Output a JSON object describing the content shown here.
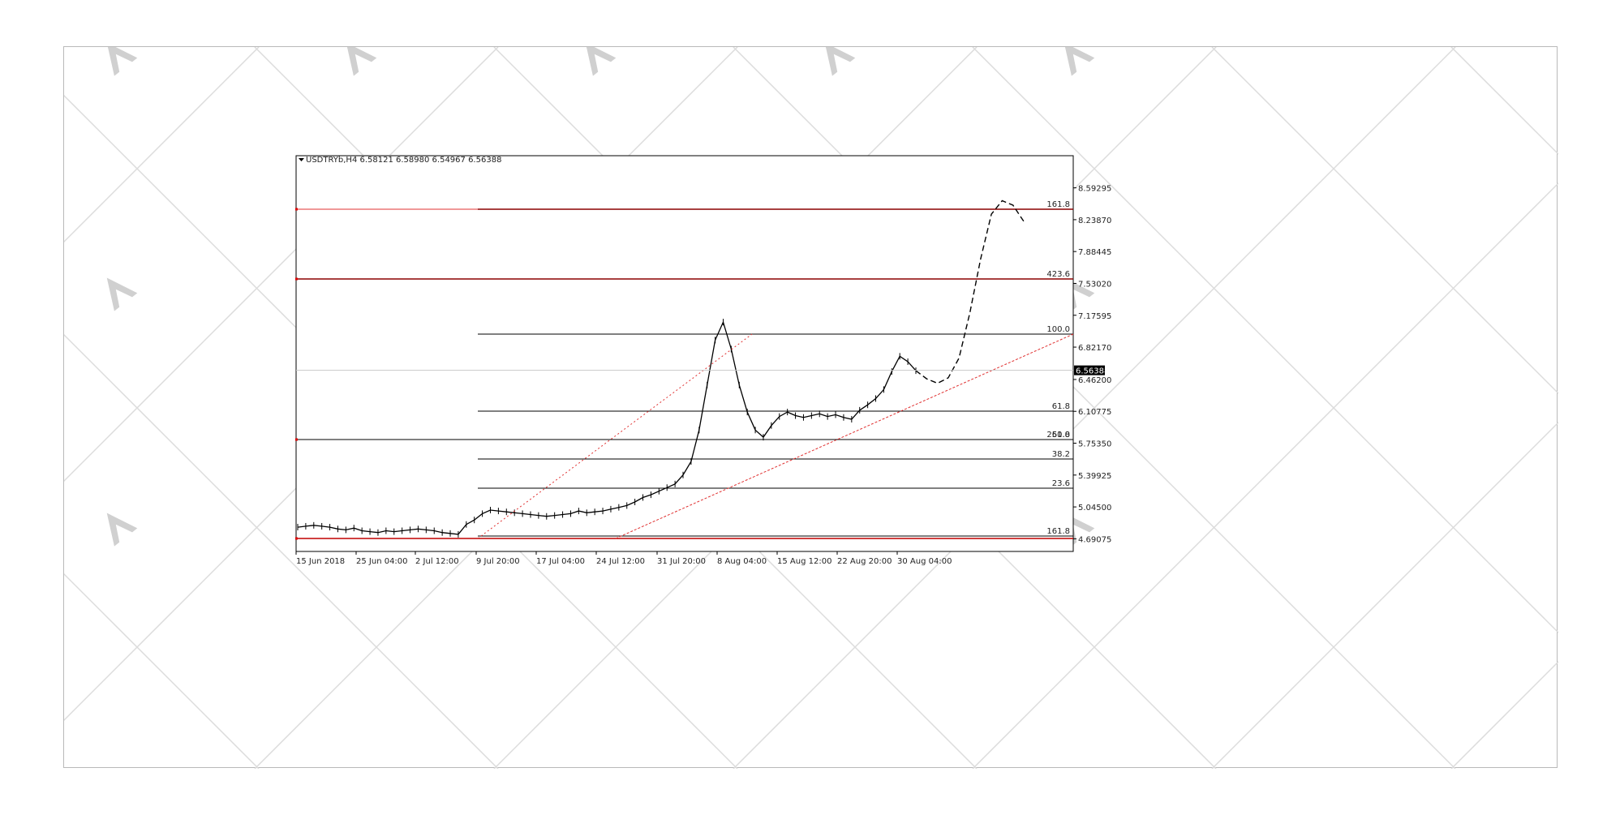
{
  "chart_data": {
    "type": "line",
    "symbol_header": "USDTRYb,H4  6.58121 6.58980 6.54967 6.56388",
    "last_price_label": "6.56388",
    "y_ticks": [
      "8.59295",
      "8.23870",
      "7.88445",
      "7.53020",
      "7.17595",
      "6.82170",
      "6.46200",
      "6.10775",
      "5.75350",
      "5.39925",
      "5.04500",
      "4.69075"
    ],
    "x_ticks": [
      "15 Jun 2018",
      "25 Jun 04:00",
      "2 Jul 12:00",
      "9 Jul 20:00",
      "17 Jul 04:00",
      "24 Jul 12:00",
      "31 Jul 20:00",
      "8 Aug 04:00",
      "15 Aug 12:00",
      "22 Aug 20:00",
      "30 Aug 04:00"
    ],
    "ylim": [
      4.55,
      8.95
    ],
    "fib_levels": [
      "161.8",
      "423.6",
      "100.0",
      "61.8",
      "50.0",
      "261.8",
      "38.2",
      "23.6",
      "161.8"
    ],
    "series": [
      {
        "values": [
          4.82,
          4.83,
          4.84,
          4.83,
          4.82,
          4.8,
          4.79,
          4.81,
          4.78,
          4.77,
          4.76,
          4.78,
          4.77,
          4.78,
          4.79,
          4.8,
          4.79,
          4.78,
          4.76,
          4.75,
          4.74,
          4.85,
          4.9,
          4.97,
          5.01,
          5.0,
          4.99,
          4.98,
          4.97,
          4.96,
          4.95,
          4.94,
          4.95,
          4.96,
          4.97,
          5.0,
          4.98,
          4.99,
          5.0,
          5.02,
          5.04,
          5.06,
          5.1,
          5.15,
          5.18,
          5.22,
          5.26,
          5.3,
          5.4,
          5.55,
          5.9,
          6.4,
          6.9,
          7.1,
          6.8,
          6.4,
          6.1,
          5.9,
          5.82,
          5.95,
          6.05,
          6.1,
          6.06,
          6.04,
          6.06,
          6.08,
          6.05,
          6.07,
          6.04,
          6.02,
          6.12,
          6.18,
          6.25,
          6.35,
          6.55,
          6.72,
          6.66,
          6.56
        ]
      }
    ],
    "projection": [
      6.56,
      6.47,
      6.42,
      6.48,
      6.7,
      7.2,
      7.8,
      8.3,
      8.45,
      8.4,
      8.22
    ]
  }
}
